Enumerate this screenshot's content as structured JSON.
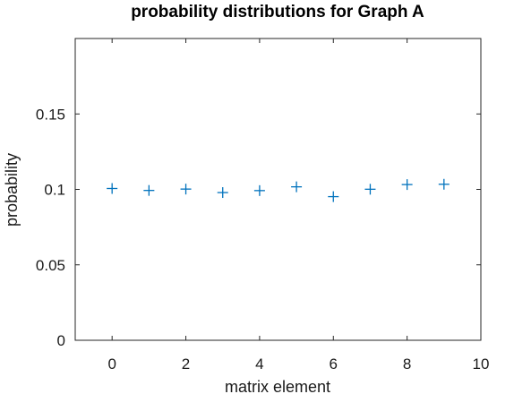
{
  "chart_data": {
    "type": "scatter",
    "title": "probability distributions for Graph A",
    "xlabel": "matrix element",
    "ylabel": "probability",
    "xlim": [
      -1,
      10
    ],
    "ylim": [
      0,
      0.2
    ],
    "xticks": [
      0,
      2,
      4,
      6,
      8,
      10
    ],
    "xtick_labels": [
      "0",
      "2",
      "4",
      "6",
      "8",
      "10"
    ],
    "yticks": [
      0,
      0.05,
      0.1,
      0.15
    ],
    "ytick_labels": [
      "0",
      "0.05",
      "0.1",
      "0.15"
    ],
    "grid": false,
    "marker": "+",
    "color": "#0072bd",
    "series": [
      {
        "x": [
          0,
          1,
          2,
          3,
          4,
          5,
          6,
          7,
          8,
          9
        ],
        "y": [
          0.1006,
          0.0993,
          0.1002,
          0.0979,
          0.0992,
          0.1017,
          0.0952,
          0.1001,
          0.1032,
          0.1034
        ]
      }
    ]
  }
}
